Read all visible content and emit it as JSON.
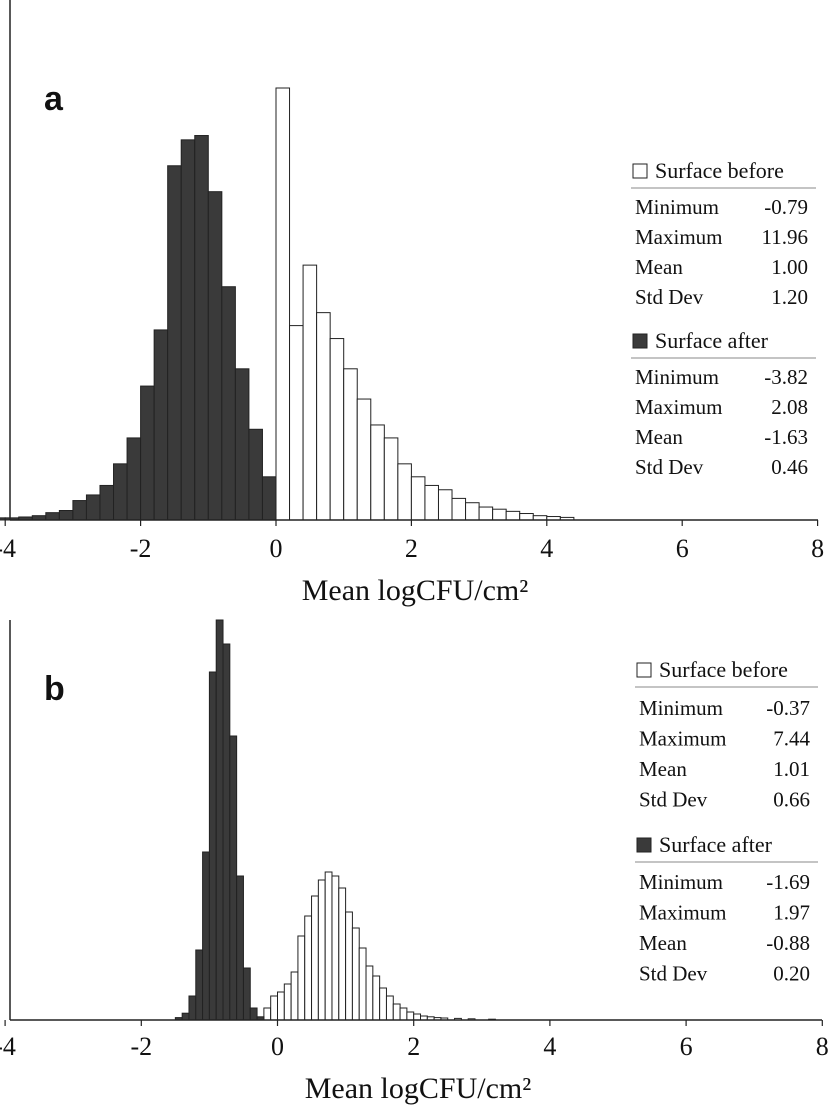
{
  "chart_data": [
    {
      "type": "bar",
      "panel_label": "a",
      "xlabel": "Mean logCFU/cm²",
      "xlim": [
        -4.3,
        8
      ],
      "x_ticks": [
        "-4",
        "-2",
        "0",
        "2",
        "4",
        "6",
        "8"
      ],
      "bin_width": 0.2,
      "y_relative_max": 1.0,
      "series": [
        {
          "name": "Surface after",
          "color": "#3a3a3a",
          "bins": [
            [
              -4.2,
              0.005
            ],
            [
              -4.0,
              0.005
            ],
            [
              -3.8,
              0.007
            ],
            [
              -3.6,
              0.01
            ],
            [
              -3.4,
              0.017
            ],
            [
              -3.2,
              0.022
            ],
            [
              -3.0,
              0.045
            ],
            [
              -2.8,
              0.058
            ],
            [
              -2.6,
              0.08
            ],
            [
              -2.4,
              0.13
            ],
            [
              -2.2,
              0.19
            ],
            [
              -2.0,
              0.31
            ],
            [
              -1.8,
              0.44
            ],
            [
              -1.6,
              0.82
            ],
            [
              -1.4,
              0.88
            ],
            [
              -1.2,
              0.89
            ],
            [
              -1.0,
              0.76
            ],
            [
              -0.8,
              0.54
            ],
            [
              -0.6,
              0.35
            ],
            [
              -0.4,
              0.21
            ],
            [
              -0.2,
              0.1
            ],
            [
              0.0,
              0.04
            ],
            [
              0.2,
              0.018
            ],
            [
              0.4,
              0.01
            ],
            [
              0.6,
              0.006
            ]
          ]
        },
        {
          "name": "Surface before",
          "color": "#ffffff",
          "bins": [
            [
              0.0,
              1.0
            ],
            [
              0.2,
              0.45
            ],
            [
              0.4,
              0.59
            ],
            [
              0.6,
              0.48
            ],
            [
              0.8,
              0.42
            ],
            [
              1.0,
              0.35
            ],
            [
              1.2,
              0.28
            ],
            [
              1.4,
              0.22
            ],
            [
              1.6,
              0.19
            ],
            [
              1.8,
              0.13
            ],
            [
              2.0,
              0.1
            ],
            [
              2.2,
              0.08
            ],
            [
              2.4,
              0.07
            ],
            [
              2.6,
              0.05
            ],
            [
              2.8,
              0.04
            ],
            [
              3.0,
              0.03
            ],
            [
              3.2,
              0.025
            ],
            [
              3.4,
              0.02
            ],
            [
              3.6,
              0.015
            ],
            [
              3.8,
              0.01
            ],
            [
              4.0,
              0.008
            ],
            [
              4.2,
              0.006
            ]
          ]
        }
      ],
      "legend": [
        {
          "name": "Surface before",
          "stats": [
            {
              "label": "Minimum",
              "value": "-0.79"
            },
            {
              "label": "Maximum",
              "value": "11.96"
            },
            {
              "label": "Mean",
              "value": "1.00"
            },
            {
              "label": "Std Dev",
              "value": "1.20"
            }
          ]
        },
        {
          "name": "Surface after",
          "stats": [
            {
              "label": "Minimum",
              "value": "-3.82"
            },
            {
              "label": "Maximum",
              "value": "2.08"
            },
            {
              "label": "Mean",
              "value": "-1.63"
            },
            {
              "label": "Std Dev",
              "value": "0.46"
            }
          ]
        }
      ]
    },
    {
      "type": "bar",
      "panel_label": "b",
      "xlabel": "Mean logCFU/cm²",
      "xlim": [
        -4.3,
        8
      ],
      "x_ticks": [
        "-4",
        "-2",
        "0",
        "2",
        "4",
        "6",
        "8"
      ],
      "bin_width": 0.1,
      "y_relative_max": 1.0,
      "series": [
        {
          "name": "Surface before",
          "color": "#ffffff",
          "bins": [
            [
              -0.2,
              0.03
            ],
            [
              -0.1,
              0.06
            ],
            [
              0.0,
              0.07
            ],
            [
              0.1,
              0.09
            ],
            [
              0.2,
              0.12
            ],
            [
              0.3,
              0.21
            ],
            [
              0.4,
              0.26
            ],
            [
              0.5,
              0.31
            ],
            [
              0.6,
              0.35
            ],
            [
              0.7,
              0.37
            ],
            [
              0.8,
              0.36
            ],
            [
              0.9,
              0.33
            ],
            [
              1.0,
              0.27
            ],
            [
              1.1,
              0.23
            ],
            [
              1.2,
              0.18
            ],
            [
              1.3,
              0.135
            ],
            [
              1.4,
              0.11
            ],
            [
              1.5,
              0.08
            ],
            [
              1.6,
              0.06
            ],
            [
              1.7,
              0.04
            ],
            [
              1.8,
              0.03
            ],
            [
              1.9,
              0.02
            ],
            [
              2.0,
              0.015
            ],
            [
              2.1,
              0.01
            ],
            [
              2.2,
              0.008
            ],
            [
              2.3,
              0.006
            ],
            [
              2.4,
              0.005
            ],
            [
              2.6,
              0.004
            ],
            [
              2.8,
              0.003
            ],
            [
              3.1,
              0.002
            ]
          ]
        },
        {
          "name": "Surface after",
          "color": "#3a3a3a",
          "bins": [
            [
              -1.5,
              0.006
            ],
            [
              -1.4,
              0.017
            ],
            [
              -1.3,
              0.06
            ],
            [
              -1.2,
              0.175
            ],
            [
              -1.1,
              0.42
            ],
            [
              -1.0,
              0.87
            ],
            [
              -0.9,
              1.0
            ],
            [
              -0.8,
              0.94
            ],
            [
              -0.7,
              0.71
            ],
            [
              -0.6,
              0.36
            ],
            [
              -0.5,
              0.13
            ],
            [
              -0.4,
              0.03
            ],
            [
              -0.3,
              0.008
            ]
          ]
        }
      ],
      "legend": [
        {
          "name": "Surface before",
          "stats": [
            {
              "label": "Minimum",
              "value": "-0.37"
            },
            {
              "label": "Maximum",
              "value": "7.44"
            },
            {
              "label": "Mean",
              "value": "1.01"
            },
            {
              "label": "Std Dev",
              "value": "0.66"
            }
          ]
        },
        {
          "name": "Surface after",
          "stats": [
            {
              "label": "Minimum",
              "value": "-1.69"
            },
            {
              "label": "Maximum",
              "value": "1.97"
            },
            {
              "label": "Mean",
              "value": "-0.88"
            },
            {
              "label": "Std Dev",
              "value": "0.20"
            }
          ]
        }
      ]
    }
  ]
}
